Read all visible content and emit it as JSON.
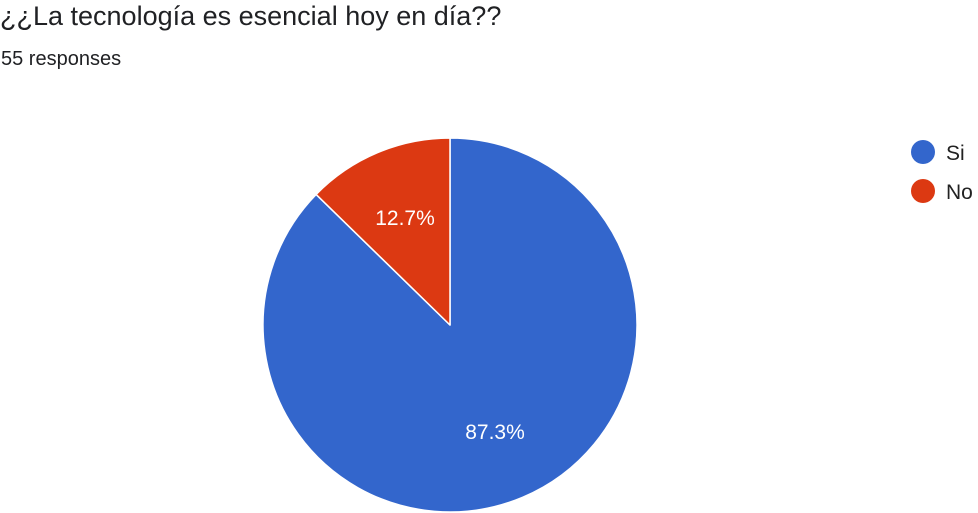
{
  "header": {
    "title": "¿¿La tecnología es esencial hoy en día??",
    "responses": "55 responses"
  },
  "chart_data": {
    "type": "pie",
    "categories": [
      "Si",
      "No"
    ],
    "values": [
      87.3,
      12.7
    ],
    "value_labels": [
      "87.3%",
      "12.7%"
    ],
    "colors": [
      "#3366cc",
      "#dc3912"
    ],
    "legend_position": "right",
    "start_angle_deg": 90,
    "direction": "clockwise",
    "slice_border": "#ffffff"
  }
}
